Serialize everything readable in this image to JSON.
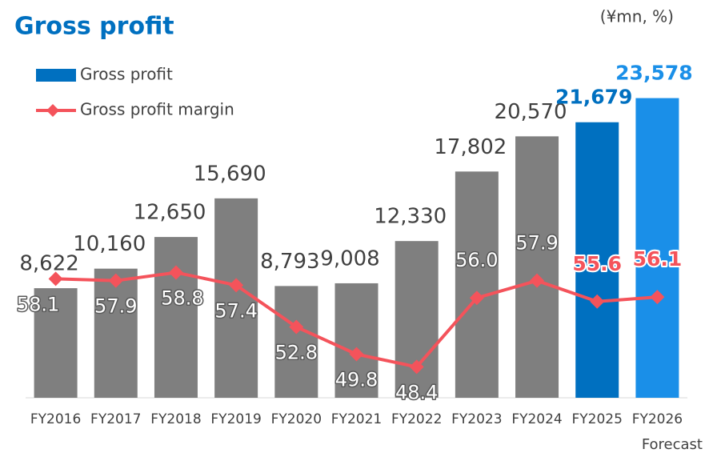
{
  "chart_data": {
    "type": "bar_line",
    "title": "Gross profit",
    "unit_note": "(¥mn, %)",
    "annotation": "Forecast",
    "categories": [
      "FY2016",
      "FY2017",
      "FY2018",
      "FY2019",
      "FY2020",
      "FY2021",
      "FY2022",
      "FY2023",
      "FY2024",
      "FY2025",
      "FY2026"
    ],
    "series": [
      {
        "name": "Gross profit",
        "type": "bar",
        "color": "#0070c0",
        "colors": [
          "#7f7f7f",
          "#7f7f7f",
          "#7f7f7f",
          "#7f7f7f",
          "#7f7f7f",
          "#7f7f7f",
          "#7f7f7f",
          "#7f7f7f",
          "#7f7f7f",
          "#0070c0",
          "#1a8fe8"
        ],
        "label_colors": [
          "#404040",
          "#404040",
          "#404040",
          "#404040",
          "#404040",
          "#404040",
          "#404040",
          "#404040",
          "#404040",
          "#0070c0",
          "#1a8fe8"
        ],
        "values": [
          8622,
          10160,
          12650,
          15690,
          8793,
          9008,
          12330,
          17802,
          20570,
          21679,
          23578
        ],
        "value_labels": [
          "8,622",
          "10,160",
          "12,650",
          "15,690",
          "8,793",
          "9,008",
          "12,330",
          "17,802",
          "20,570",
          "21,679",
          "23,578"
        ]
      },
      {
        "name": "Gross profit margin",
        "type": "line",
        "axis": "y2",
        "color": "#f4535b",
        "label_colors": [
          "#ffffff",
          "#ffffff",
          "#ffffff",
          "#ffffff",
          "#ffffff",
          "#ffffff",
          "#ffffff",
          "#ffffff",
          "#ffffff",
          "#f4535b",
          "#f4535b"
        ],
        "values": [
          58.1,
          57.9,
          58.8,
          57.4,
          52.8,
          49.8,
          48.4,
          56.0,
          57.9,
          55.6,
          56.1
        ],
        "value_labels": [
          "58.1",
          "57.9",
          "58.8",
          "57.4",
          "52.8",
          "49.8",
          "48.4",
          "56.0",
          "57.9",
          "55.6",
          "56.1"
        ]
      }
    ],
    "ylim": [
      0,
      25000
    ],
    "y2lim": [
      45,
      80
    ]
  }
}
